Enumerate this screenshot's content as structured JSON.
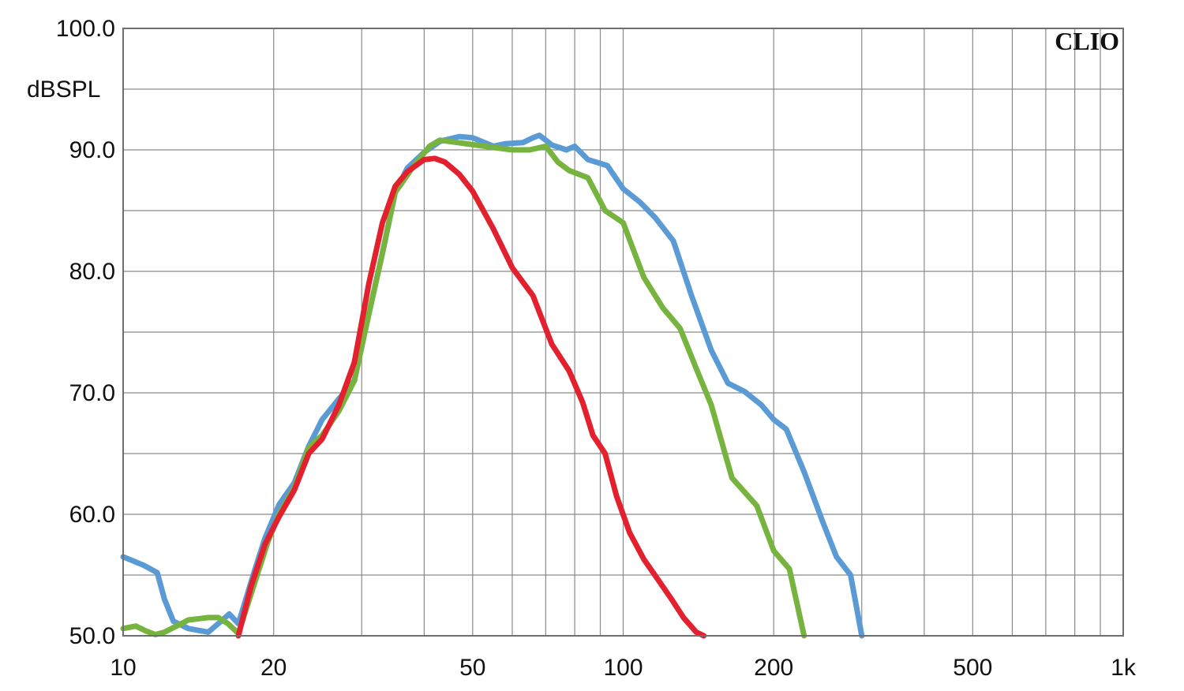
{
  "chart_data": {
    "type": "line",
    "brand": "CLIO",
    "y_unit": "dBSPL",
    "xscale": "log",
    "xlim": [
      10,
      1000
    ],
    "ylim": [
      50,
      100
    ],
    "grid": true,
    "x_ticks": [
      {
        "value": 10,
        "label": "10"
      },
      {
        "value": 20,
        "label": "20"
      },
      {
        "value": 50,
        "label": "50"
      },
      {
        "value": 100,
        "label": "100"
      },
      {
        "value": 200,
        "label": "200"
      },
      {
        "value": 500,
        "label": "500"
      },
      {
        "value": 1000,
        "label": "1k"
      }
    ],
    "y_ticks": [
      {
        "value": 100,
        "label": "100.0"
      },
      {
        "value": 90,
        "label": "90.0"
      },
      {
        "value": 80,
        "label": "80.0"
      },
      {
        "value": 70,
        "label": "70.0"
      },
      {
        "value": 60,
        "label": "60.0"
      },
      {
        "value": 50,
        "label": "50.0"
      }
    ],
    "series": [
      {
        "color": "#5b9bd5",
        "x": [
          10,
          11,
          11.7,
          12.1,
          12.6,
          13.5,
          14.8,
          15.7,
          16.3,
          17,
          18.2,
          19.2,
          20.5,
          22,
          23.5,
          25,
          27,
          29,
          31,
          33,
          35,
          37,
          40,
          43,
          47,
          50,
          55,
          58,
          63,
          66,
          68,
          72,
          77,
          80,
          85,
          93,
          100,
          108,
          116,
          126,
          137,
          150,
          162,
          175,
          189,
          200,
          212,
          230,
          250,
          267,
          285,
          300
        ],
        "y": [
          56.5,
          55.8,
          55.2,
          53.0,
          51.2,
          50.6,
          50.3,
          51.2,
          51.8,
          51.0,
          55.0,
          58.0,
          60.8,
          62.6,
          65.6,
          67.8,
          69.5,
          71.0,
          76.5,
          81.5,
          86.5,
          88.5,
          89.8,
          90.7,
          91.1,
          91.0,
          90.3,
          90.5,
          90.6,
          91.0,
          91.2,
          90.4,
          90.0,
          90.3,
          89.2,
          88.7,
          86.8,
          85.7,
          84.4,
          82.5,
          78.0,
          73.5,
          70.8,
          70.1,
          69.0,
          67.8,
          67.0,
          63.5,
          59.5,
          56.5,
          55.0,
          50.0
        ]
      },
      {
        "color": "#77b43f",
        "x": [
          10,
          10.6,
          11.1,
          11.6,
          12.1,
          13.5,
          14.8,
          15.5,
          16.2,
          17,
          19.5,
          20.5,
          22,
          23.5,
          25,
          27,
          29,
          31,
          33,
          35,
          38,
          41,
          43,
          55,
          60,
          65,
          70,
          74,
          78,
          85,
          92,
          100,
          110,
          120,
          130,
          140,
          150,
          165,
          185,
          200,
          215,
          230
        ],
        "y": [
          50.6,
          50.8,
          50.4,
          50.1,
          50.3,
          51.3,
          51.5,
          51.5,
          51.0,
          50.2,
          57.8,
          60.0,
          62.2,
          65.5,
          66.5,
          68.5,
          71.0,
          76.5,
          81.5,
          86.5,
          88.6,
          90.3,
          90.8,
          90.2,
          90.0,
          90.0,
          90.3,
          89.0,
          88.3,
          87.7,
          85.0,
          84.0,
          79.5,
          77.0,
          75.3,
          72.0,
          69.0,
          63.0,
          60.7,
          57.0,
          55.5,
          50.0
        ]
      },
      {
        "color": "#e3202d",
        "x": [
          17,
          18,
          19.2,
          20.5,
          22,
          23.5,
          25,
          27,
          29,
          31,
          33,
          35,
          37,
          40,
          42,
          44,
          47,
          50,
          55,
          60,
          66,
          72,
          78,
          83,
          87,
          92,
          97,
          103,
          110,
          118,
          125,
          132,
          140,
          145
        ],
        "y": [
          50.0,
          54.0,
          57.5,
          59.8,
          62.0,
          65.0,
          66.2,
          69.0,
          72.5,
          79.0,
          84.0,
          87.0,
          88.2,
          89.2,
          89.3,
          89.0,
          88.0,
          86.6,
          83.5,
          80.3,
          78.0,
          74.0,
          71.8,
          69.2,
          66.5,
          65.0,
          61.5,
          58.5,
          56.3,
          54.5,
          53.0,
          51.5,
          50.3,
          50.0
        ]
      }
    ]
  }
}
